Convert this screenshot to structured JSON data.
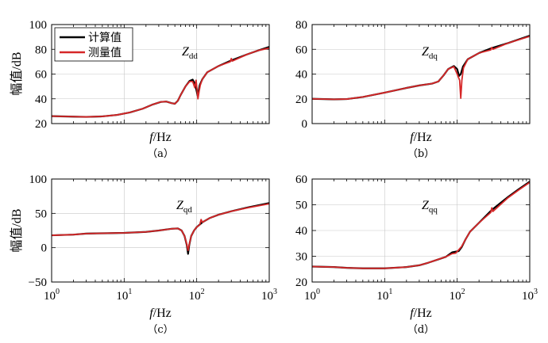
{
  "colors": {
    "calculated": "#000000",
    "measured": "#d62728"
  },
  "legend": {
    "calculated_label": "计算值",
    "measured_label": "测量值"
  },
  "chart_data": [
    {
      "type": "line",
      "caption": "（a）",
      "annotation": "Z",
      "annotation_sub": "dd",
      "xlabel": "f/Hz",
      "ylabel": "幅值/dB",
      "xscale": "log",
      "xlim": [
        1,
        1000
      ],
      "ylim": [
        20,
        100
      ],
      "yticks": [
        20,
        40,
        60,
        80,
        100
      ],
      "xtick_labels_shown": false,
      "legend": true,
      "legend_position": "top-left",
      "grid": true,
      "series": [
        {
          "name": "计算值",
          "points": [
            [
              1,
              26
            ],
            [
              2,
              25.6
            ],
            [
              3,
              25.4
            ],
            [
              5,
              25.8
            ],
            [
              8,
              27
            ],
            [
              12,
              29
            ],
            [
              18,
              32
            ],
            [
              25,
              35.5
            ],
            [
              32,
              37.5
            ],
            [
              38,
              37.8
            ],
            [
              45,
              36.5
            ],
            [
              50,
              36
            ],
            [
              55,
              38.5
            ],
            [
              60,
              43
            ],
            [
              70,
              50
            ],
            [
              80,
              54.5
            ],
            [
              88,
              55.5
            ],
            [
              95,
              52
            ],
            [
              100,
              46
            ],
            [
              103,
              42.5
            ],
            [
              106,
              46
            ],
            [
              110,
              51
            ],
            [
              120,
              56
            ],
            [
              140,
              61.5
            ],
            [
              200,
              66.5
            ],
            [
              300,
              71
            ],
            [
              500,
              76
            ],
            [
              700,
              79
            ],
            [
              1000,
              82
            ]
          ]
        },
        {
          "name": "测量值",
          "points": [
            [
              1,
              26
            ],
            [
              2,
              25.6
            ],
            [
              3,
              25.4
            ],
            [
              5,
              25.8
            ],
            [
              8,
              27
            ],
            [
              12,
              29
            ],
            [
              18,
              32
            ],
            [
              25,
              35.5
            ],
            [
              32,
              37.5
            ],
            [
              38,
              37.8
            ],
            [
              45,
              36.5
            ],
            [
              50,
              36
            ],
            [
              55,
              38.5
            ],
            [
              60,
              43
            ],
            [
              70,
              50
            ],
            [
              80,
              54
            ],
            [
              88,
              54
            ],
            [
              94,
              49
            ],
            [
              98,
              55
            ],
            [
              101,
              48
            ],
            [
              104,
              40
            ],
            [
              108,
              46
            ],
            [
              112,
              51
            ],
            [
              120,
              56
            ],
            [
              140,
              61.5
            ],
            [
              200,
              66.5
            ],
            [
              290,
              70
            ],
            [
              300,
              72.5
            ],
            [
              310,
              70.5
            ],
            [
              500,
              76
            ],
            [
              700,
              79
            ],
            [
              1000,
              81
            ]
          ]
        }
      ]
    },
    {
      "type": "line",
      "caption": "（b）",
      "annotation": "Z",
      "annotation_sub": "dq",
      "xlabel": "f/Hz",
      "xscale": "log",
      "xlim": [
        1,
        1000
      ],
      "ylim": [
        0,
        80
      ],
      "yticks": [
        0,
        20,
        40,
        60,
        80
      ],
      "xtick_labels_shown": false,
      "grid": true,
      "series": [
        {
          "name": "计算值",
          "points": [
            [
              1,
              20
            ],
            [
              2,
              19.6
            ],
            [
              3,
              19.8
            ],
            [
              5,
              21.5
            ],
            [
              10,
              25
            ],
            [
              20,
              28.8
            ],
            [
              30,
              30.8
            ],
            [
              45,
              32.3
            ],
            [
              55,
              34
            ],
            [
              65,
              39
            ],
            [
              75,
              44
            ],
            [
              90,
              46.5
            ],
            [
              100,
              44
            ],
            [
              106,
              38.5
            ],
            [
              112,
              40
            ],
            [
              120,
              46
            ],
            [
              140,
              52
            ],
            [
              200,
              57
            ],
            [
              300,
              61
            ],
            [
              500,
              65
            ],
            [
              1000,
              71
            ]
          ]
        },
        {
          "name": "测量值",
          "points": [
            [
              1,
              20
            ],
            [
              2,
              19.6
            ],
            [
              3,
              19.8
            ],
            [
              5,
              21.5
            ],
            [
              10,
              25
            ],
            [
              20,
              28.8
            ],
            [
              30,
              30.8
            ],
            [
              45,
              32.3
            ],
            [
              55,
              34
            ],
            [
              65,
              39
            ],
            [
              75,
              44
            ],
            [
              90,
              46
            ],
            [
              100,
              40
            ],
            [
              108,
              35
            ],
            [
              112,
              20.5
            ],
            [
              116,
              35
            ],
            [
              122,
              45
            ],
            [
              140,
              52
            ],
            [
              200,
              57
            ],
            [
              290,
              59.5
            ],
            [
              300,
              61.5
            ],
            [
              310,
              60
            ],
            [
              500,
              65
            ],
            [
              1000,
              70.5
            ]
          ]
        }
      ]
    },
    {
      "type": "line",
      "caption": "（c）",
      "annotation": "Z",
      "annotation_sub": "qd",
      "xlabel": "f/Hz",
      "ylabel": "幅值/dB",
      "xscale": "log",
      "xlim": [
        1,
        1000
      ],
      "ylim": [
        -50,
        100
      ],
      "yticks": [
        -50,
        0,
        50,
        100
      ],
      "xtick_labels_shown": true,
      "grid": true,
      "series": [
        {
          "name": "计算值",
          "points": [
            [
              1,
              18
            ],
            [
              2,
              19
            ],
            [
              3,
              20.5
            ],
            [
              5,
              21
            ],
            [
              10,
              21.5
            ],
            [
              20,
              23
            ],
            [
              30,
              25
            ],
            [
              45,
              27.5
            ],
            [
              55,
              28
            ],
            [
              62,
              25
            ],
            [
              68,
              17
            ],
            [
              73,
              4
            ],
            [
              76,
              -9
            ],
            [
              79,
              4
            ],
            [
              84,
              17
            ],
            [
              92,
              25
            ],
            [
              100,
              30
            ],
            [
              120,
              37
            ],
            [
              150,
              43
            ],
            [
              200,
              48
            ],
            [
              300,
              53
            ],
            [
              500,
              58.5
            ],
            [
              1000,
              65
            ]
          ]
        },
        {
          "name": "测量值",
          "points": [
            [
              1,
              18
            ],
            [
              2,
              19
            ],
            [
              3,
              20.5
            ],
            [
              5,
              21
            ],
            [
              10,
              21.5
            ],
            [
              20,
              23
            ],
            [
              30,
              25
            ],
            [
              45,
              27.5
            ],
            [
              55,
              28
            ],
            [
              62,
              25
            ],
            [
              68,
              17
            ],
            [
              73,
              5
            ],
            [
              76,
              -4
            ],
            [
              79,
              5
            ],
            [
              84,
              17
            ],
            [
              92,
              25
            ],
            [
              100,
              30
            ],
            [
              110,
              33
            ],
            [
              115,
              41
            ],
            [
              120,
              37
            ],
            [
              150,
              43
            ],
            [
              200,
              48
            ],
            [
              300,
              53
            ],
            [
              500,
              58
            ],
            [
              1000,
              64
            ]
          ]
        }
      ]
    },
    {
      "type": "line",
      "caption": "（d）",
      "annotation": "Z",
      "annotation_sub": "qq",
      "xlabel": "f/Hz",
      "xscale": "log",
      "xlim": [
        1,
        1000
      ],
      "ylim": [
        20,
        60
      ],
      "yticks": [
        20,
        30,
        40,
        50,
        60
      ],
      "xtick_labels_shown": true,
      "grid": true,
      "series": [
        {
          "name": "计算值",
          "points": [
            [
              1,
              26
            ],
            [
              2,
              25.8
            ],
            [
              3,
              25.5
            ],
            [
              5,
              25.3
            ],
            [
              10,
              25.3
            ],
            [
              20,
              25.8
            ],
            [
              30,
              26.5
            ],
            [
              40,
              27.5
            ],
            [
              55,
              28.8
            ],
            [
              70,
              29.8
            ],
            [
              85,
              31.5
            ],
            [
              95,
              31.8
            ],
            [
              105,
              32
            ],
            [
              115,
              33.5
            ],
            [
              130,
              36.5
            ],
            [
              150,
              39.5
            ],
            [
              200,
              43
            ],
            [
              300,
              48
            ],
            [
              500,
              53
            ],
            [
              700,
              56
            ],
            [
              1000,
              59
            ]
          ]
        },
        {
          "name": "测量值",
          "points": [
            [
              1,
              26
            ],
            [
              2,
              25.8
            ],
            [
              3,
              25.5
            ],
            [
              5,
              25.3
            ],
            [
              10,
              25.3
            ],
            [
              20,
              25.8
            ],
            [
              30,
              26.5
            ],
            [
              40,
              27.5
            ],
            [
              55,
              28.8
            ],
            [
              70,
              29.8
            ],
            [
              85,
              31
            ],
            [
              95,
              31.2
            ],
            [
              105,
              32.5
            ],
            [
              115,
              33.8
            ],
            [
              130,
              36.5
            ],
            [
              150,
              39.5
            ],
            [
              200,
              43
            ],
            [
              290,
              47
            ],
            [
              300,
              48.8
            ],
            [
              310,
              47.4
            ],
            [
              500,
              52.7
            ],
            [
              700,
              55.7
            ],
            [
              1000,
              58.7
            ]
          ]
        }
      ]
    }
  ]
}
